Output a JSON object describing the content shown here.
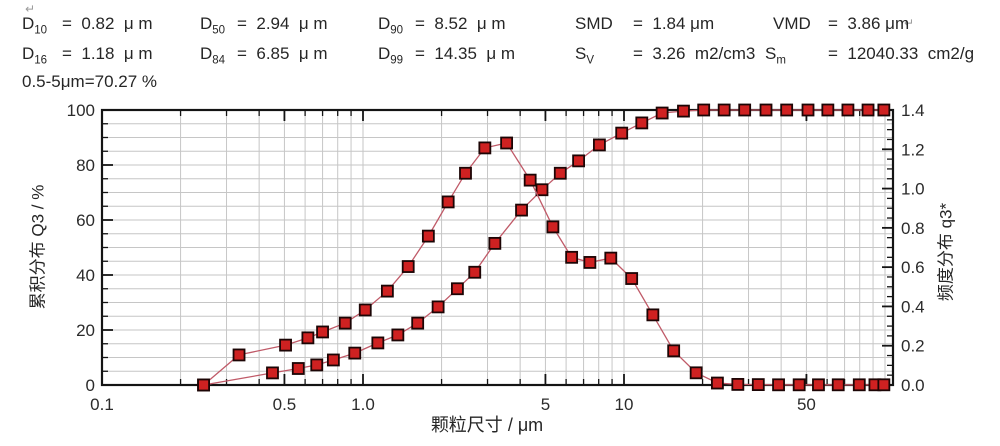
{
  "header": {
    "mark_top_left": "↵",
    "mark_line1_end": "↵",
    "row1": [
      {
        "base": "D",
        "sub": "10",
        "value": "=  0.82  μ m"
      },
      {
        "base": "D",
        "sub": "50",
        "value": "=  2.94  μ m"
      },
      {
        "base": "D",
        "sub": "90",
        "value": "=  8.52  μ m"
      },
      {
        "base": "SMD",
        "sub": "",
        "value": "=  1.84 μm"
      },
      {
        "base": "VMD",
        "sub": "",
        "value": "=  3.86 μm"
      }
    ],
    "row2": [
      {
        "base": "D",
        "sub": "16",
        "value": "=  1.18  μ m"
      },
      {
        "base": "D",
        "sub": "84",
        "value": "=  6.85  μ m"
      },
      {
        "base": "D",
        "sub": "99",
        "value": "=  14.35  μ m"
      },
      {
        "base": "S",
        "sub": "V",
        "value": "=  3.26  m2/cm3"
      },
      {
        "base": "S",
        "sub": "m",
        "value": "=  12040.33  cm2/g"
      }
    ],
    "row3": "0.5-5μm=70.27 %"
  },
  "chart_data": {
    "type": "line",
    "title": "",
    "x_axis": {
      "label": "颗粒尺寸 / μm",
      "scale": "log",
      "min": 0.1,
      "max": 107,
      "labeled_ticks": [
        0.1,
        0.5,
        1.0,
        5,
        10,
        50
      ],
      "tick_labels": [
        "0.1",
        "0.5",
        "1.0",
        "5",
        "10",
        "50"
      ]
    },
    "y_left": {
      "label": "累积分布 Q3 / %",
      "min": 0,
      "max": 100,
      "major_step": 20,
      "minor_step": 5,
      "tick_labels": [
        "0",
        "20",
        "40",
        "60",
        "80",
        "100"
      ],
      "tick_values": [
        0,
        20,
        40,
        60,
        80,
        100
      ]
    },
    "y_right": {
      "label": "频度分布  q3*",
      "min": 0,
      "max": 1.4,
      "major_step": 0.2,
      "minor_step": 0.05,
      "tick_labels": [
        "0.0",
        "0.2",
        "0.4",
        "0.6",
        "0.8",
        "1.0",
        "1.2",
        "1.4"
      ],
      "tick_values": [
        0,
        0.2,
        0.4,
        0.6,
        0.8,
        1.0,
        1.2,
        1.4
      ]
    },
    "grid": true,
    "legend": "none",
    "series": [
      {
        "name": "cumulative_Q3",
        "axis": "left",
        "marker": "square",
        "points": [
          [
            0.245,
            0
          ],
          [
            0.45,
            4.4
          ],
          [
            0.565,
            6.0
          ],
          [
            0.665,
            7.3
          ],
          [
            0.77,
            9.1
          ],
          [
            0.93,
            11.6
          ],
          [
            1.14,
            15.3
          ],
          [
            1.36,
            18.2
          ],
          [
            1.62,
            22.5
          ],
          [
            1.94,
            28.4
          ],
          [
            2.3,
            35.0
          ],
          [
            2.68,
            41.0
          ],
          [
            3.2,
            51.5
          ],
          [
            4.05,
            63.6
          ],
          [
            4.85,
            71.0
          ],
          [
            5.7,
            77.0
          ],
          [
            6.7,
            81.5
          ],
          [
            8.05,
            87.3
          ],
          [
            9.8,
            91.6
          ],
          [
            11.7,
            95.3
          ],
          [
            14.0,
            98.9
          ],
          [
            16.9,
            99.6
          ],
          [
            20.2,
            100
          ],
          [
            24.2,
            100
          ],
          [
            29.0,
            100
          ],
          [
            35.0,
            100
          ],
          [
            42.0,
            100
          ],
          [
            50.7,
            100
          ],
          [
            60.4,
            100
          ],
          [
            72.1,
            100
          ],
          [
            86.1,
            100
          ],
          [
            99.0,
            100
          ]
        ]
      },
      {
        "name": "frequency_q3star",
        "axis": "right",
        "marker": "square",
        "points": [
          [
            0.245,
            0
          ],
          [
            0.335,
            0.153
          ],
          [
            0.505,
            0.203
          ],
          [
            0.615,
            0.24
          ],
          [
            0.7,
            0.27
          ],
          [
            0.855,
            0.315
          ],
          [
            1.02,
            0.382
          ],
          [
            1.24,
            0.478
          ],
          [
            1.49,
            0.603
          ],
          [
            1.78,
            0.758
          ],
          [
            2.12,
            0.932
          ],
          [
            2.47,
            1.078
          ],
          [
            2.93,
            1.207
          ],
          [
            3.55,
            1.232
          ],
          [
            4.37,
            1.043
          ],
          [
            5.34,
            0.805
          ],
          [
            6.3,
            0.65
          ],
          [
            7.4,
            0.624
          ],
          [
            8.9,
            0.646
          ],
          [
            10.7,
            0.542
          ],
          [
            12.9,
            0.357
          ],
          [
            15.5,
            0.174
          ],
          [
            18.9,
            0.062
          ],
          [
            22.8,
            0.01
          ],
          [
            27.3,
            0.003
          ],
          [
            32.7,
            0.002
          ],
          [
            39.1,
            0.001
          ],
          [
            46.9,
            0.001
          ],
          [
            55.6,
            0.001
          ],
          [
            66.2,
            0.001
          ],
          [
            79.7,
            0.001
          ],
          [
            91.5,
            0.001
          ],
          [
            99.0,
            0.001
          ]
        ]
      }
    ],
    "colors": {
      "marker_fill": "#cf2121",
      "marker_stroke": "#1c0505",
      "line": "#c05a68",
      "grid": "#c6c6c6",
      "frame": "#141414",
      "tick_text": "#2b2b2b"
    }
  }
}
